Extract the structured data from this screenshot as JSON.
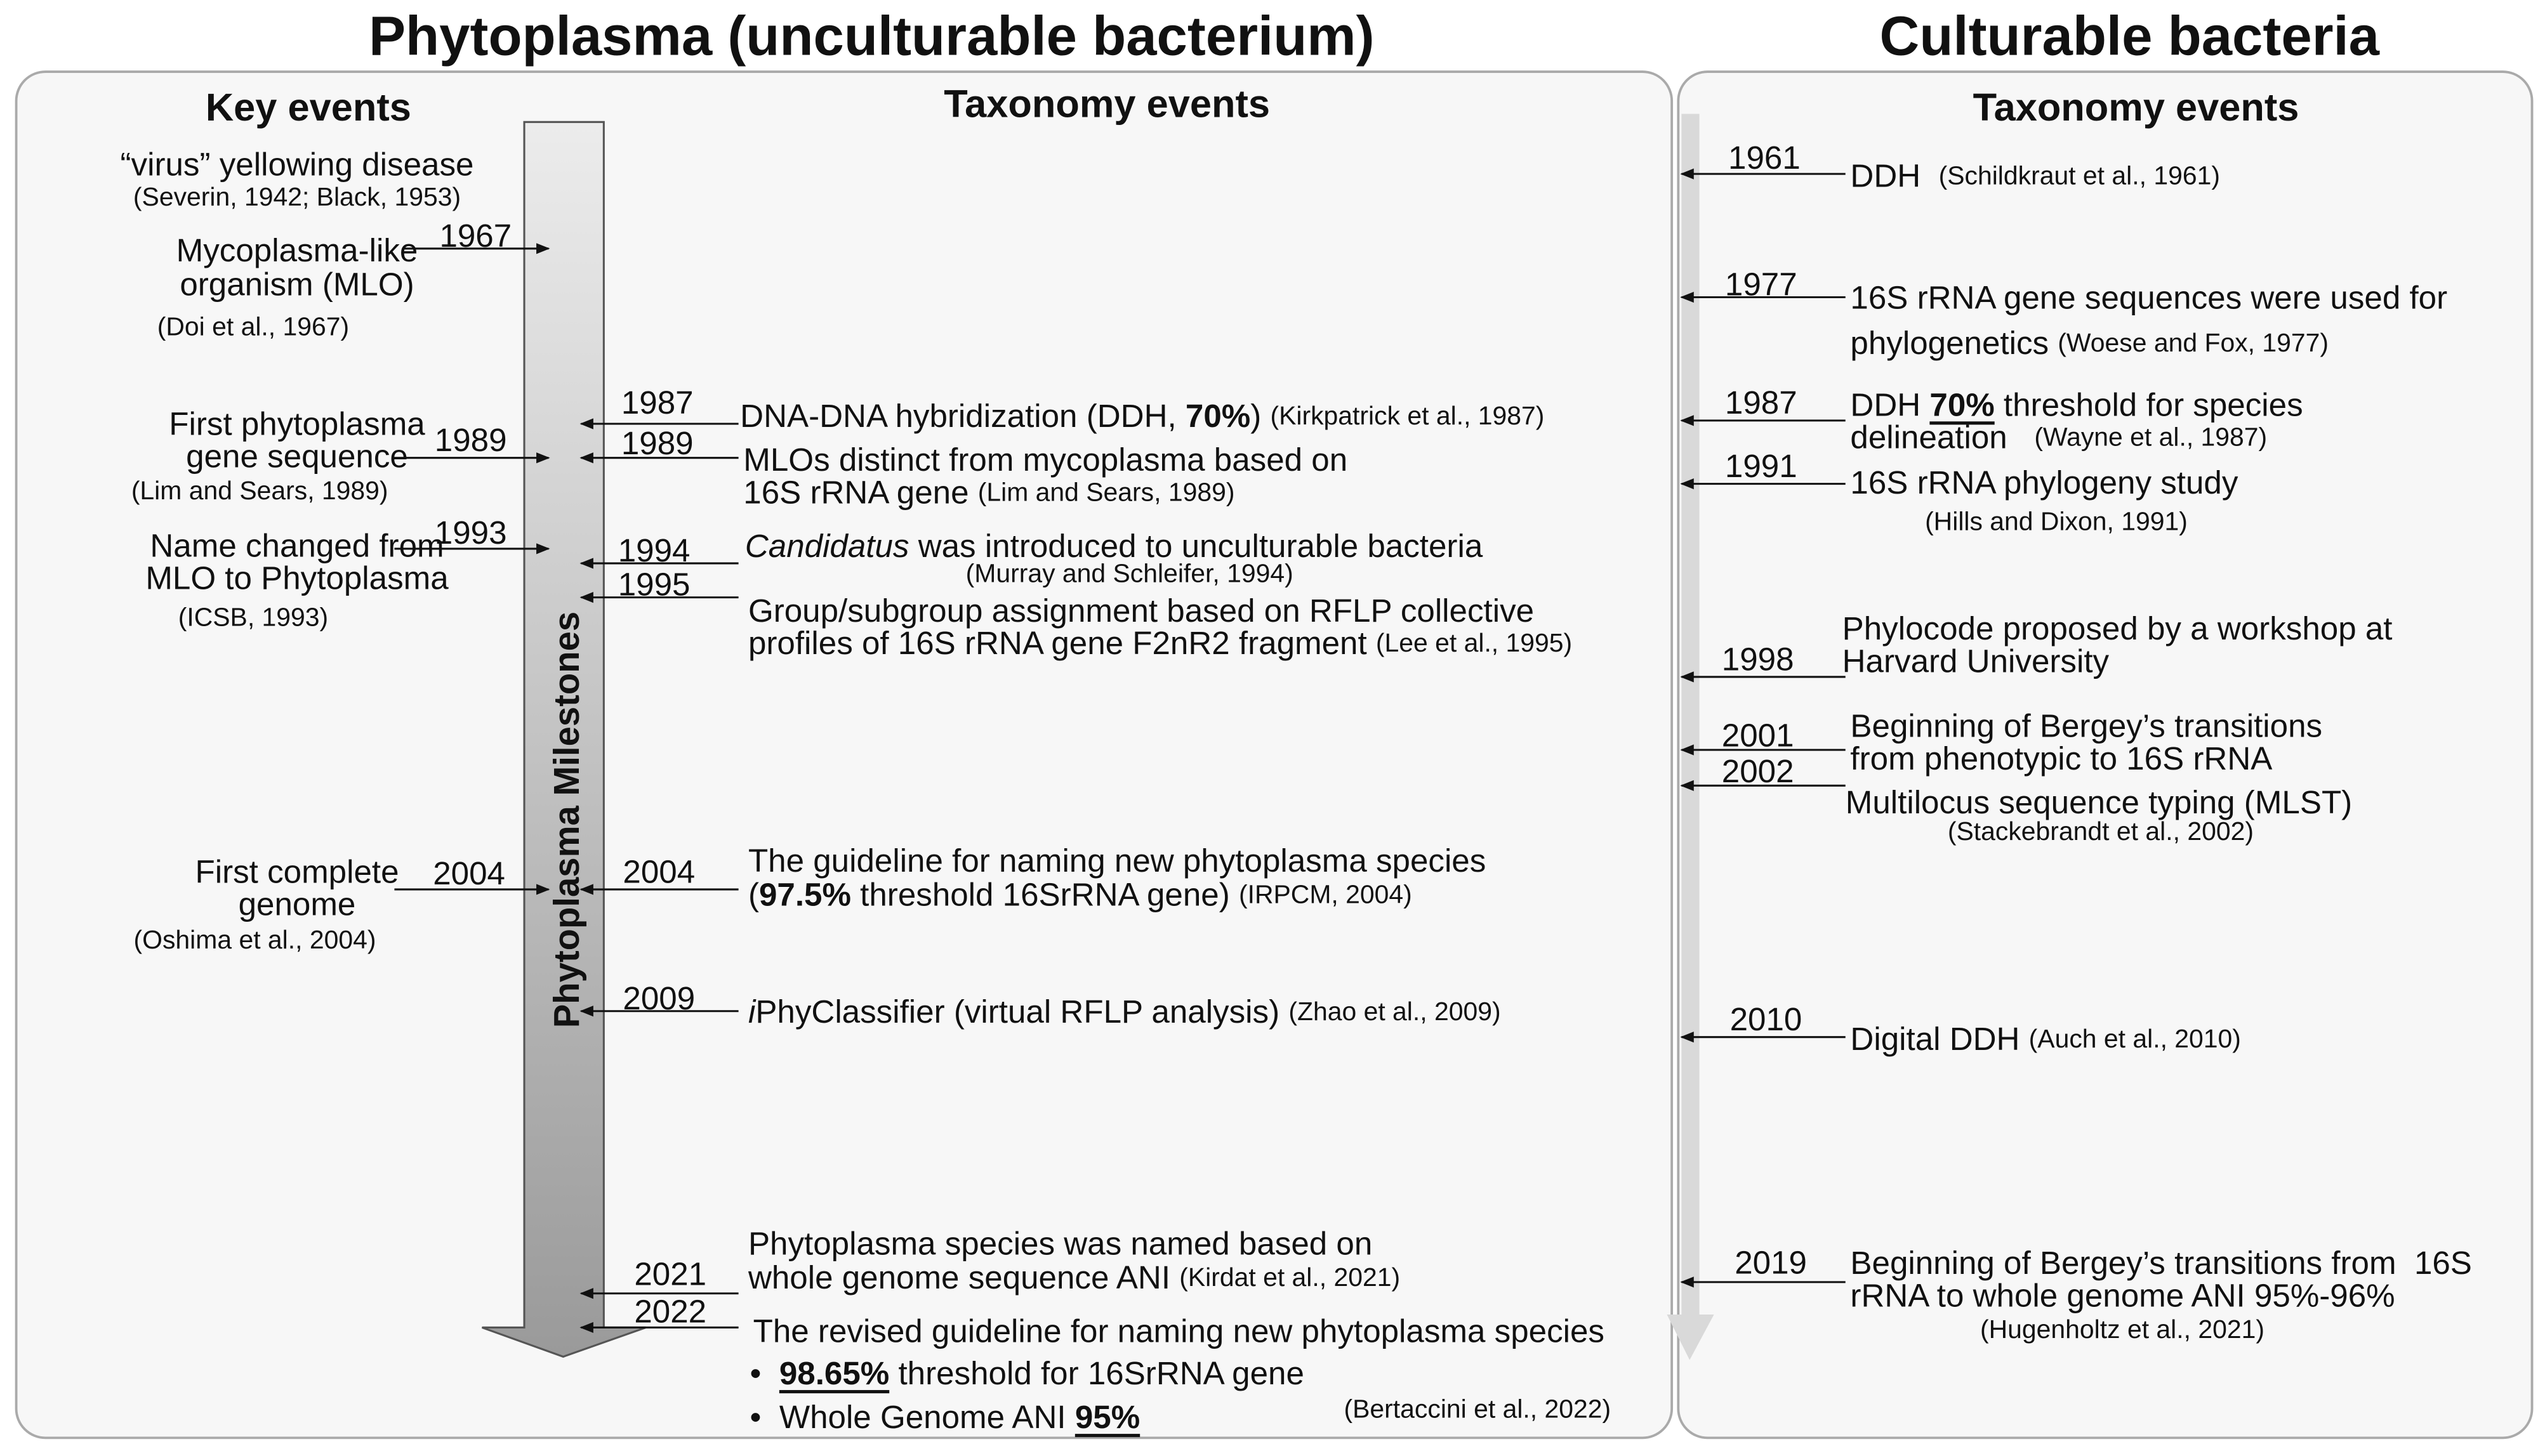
{
  "left": {
    "title": "Phytoplasma (unculturable bacterium)",
    "key_events_header": "Key events",
    "taxonomy_header": "Taxonomy events",
    "arrow_label": "Phytoplasma Milestones",
    "key_events": [
      {
        "lines": [
          "“virus” yellowing disease"
        ],
        "ref": "(Severin, 1942; Black, 1953)"
      },
      {
        "year": "1967",
        "lines": [
          "Mycoplasma-like",
          "organism (MLO)"
        ],
        "ref": "(Doi et al., 1967)"
      },
      {
        "year": "1989",
        "lines": [
          "First phytoplasma",
          "gene sequence"
        ],
        "ref": "(Lim and Sears, 1989)"
      },
      {
        "year": "1993",
        "lines": [
          "Name changed from",
          "MLO to Phytoplasma"
        ],
        "ref": "(ICSB, 1993)"
      },
      {
        "year": "2004",
        "lines": [
          "First complete",
          "genome"
        ],
        "ref": "(Oshima et al., 2004)"
      }
    ],
    "taxonomy_events": [
      {
        "year": "1987",
        "lines": [
          [
            "DNA-DNA hybridization (DDH, ",
            "70%",
            ") ",
            "(Kirkpatrick et al., 1987)"
          ]
        ]
      },
      {
        "year": "1989",
        "lines": [
          [
            "MLOs distinct from mycoplasma based on"
          ],
          [
            "16S rRNA gene ",
            "(Lim and Sears, 1989)"
          ]
        ]
      },
      {
        "year": "1994",
        "lines": [
          [
            "Candidatus",
            " was introduced to unculturable bacteria"
          ],
          [
            "(Murray and Schleifer, 1994)"
          ]
        ]
      },
      {
        "year": "1995",
        "lines": [
          [
            "Group/subgroup assignment based on RFLP collective"
          ],
          [
            "profiles of 16S rRNA gene F2nR2 fragment ",
            "(Lee et al., 1995)"
          ]
        ]
      },
      {
        "year": "2004",
        "lines": [
          [
            "The guideline for naming new phytoplasma species"
          ],
          [
            "(",
            "97.5%",
            " threshold 16SrRNA gene) ",
            "(IRPCM, 2004)"
          ]
        ]
      },
      {
        "year": "2009",
        "lines": [
          [
            "i",
            "PhyClassifier (virtual RFLP analysis) ",
            "(Zhao et al., 2009)"
          ]
        ]
      },
      {
        "year": "2021",
        "lines": [
          [
            "Phytoplasma species was named based on"
          ],
          [
            "whole genome sequence ANI ",
            "(Kirdat et al., 2021)"
          ]
        ]
      },
      {
        "year": "2022",
        "lines": [
          [
            "The revised guideline for naming new phytoplasma species"
          ],
          [
            "•  ",
            "98.65%",
            " threshold for 16SrRNA gene"
          ],
          [
            "•  Whole Genome ANI ",
            "95%"
          ],
          [
            "(Bertaccini et al., 2022)"
          ]
        ]
      }
    ]
  },
  "right": {
    "title": "Culturable bacteria",
    "taxonomy_header": "Taxonomy events",
    "taxonomy_events": [
      {
        "year": "1961",
        "lines": [
          [
            "DDH  ",
            "(Schildkraut et al., 1961)"
          ]
        ]
      },
      {
        "year": "1977",
        "lines": [
          [
            "16S rRNA gene sequences were used for"
          ],
          [
            "phylogenetics ",
            "(Woese and Fox, 1977)"
          ]
        ]
      },
      {
        "year": "1987",
        "lines": [
          [
            "DDH ",
            "70%",
            " threshold for species"
          ],
          [
            "delineation   ",
            "(Wayne et al., 1987)"
          ]
        ]
      },
      {
        "year": "1991",
        "lines": [
          [
            "16S rRNA phylogeny study"
          ],
          [
            "(Hills and Dixon, 1991)"
          ]
        ]
      },
      {
        "year": "1998",
        "lines": [
          [
            "Phylocode proposed by a workshop at"
          ],
          [
            "Harvard University"
          ]
        ]
      },
      {
        "year": "2001",
        "lines": [
          [
            "Beginning of Bergey’s transitions"
          ],
          [
            "from phenotypic to 16S rRNA"
          ]
        ]
      },
      {
        "year": "2002",
        "lines": [
          [
            "Multilocus sequence typing (MLST)"
          ],
          [
            "(Stackebrandt et al., 2002)"
          ]
        ]
      },
      {
        "year": "2010",
        "lines": [
          [
            "Digital DDH ",
            "(Auch et al., 2010)"
          ]
        ]
      },
      {
        "year": "2019",
        "lines": [
          [
            "Beginning of Bergey’s transitions from  16S"
          ],
          [
            "rRNA to whole genome ANI 95%-96%"
          ],
          [
            "(Hugenholtz et al., 2021)"
          ]
        ]
      }
    ]
  }
}
